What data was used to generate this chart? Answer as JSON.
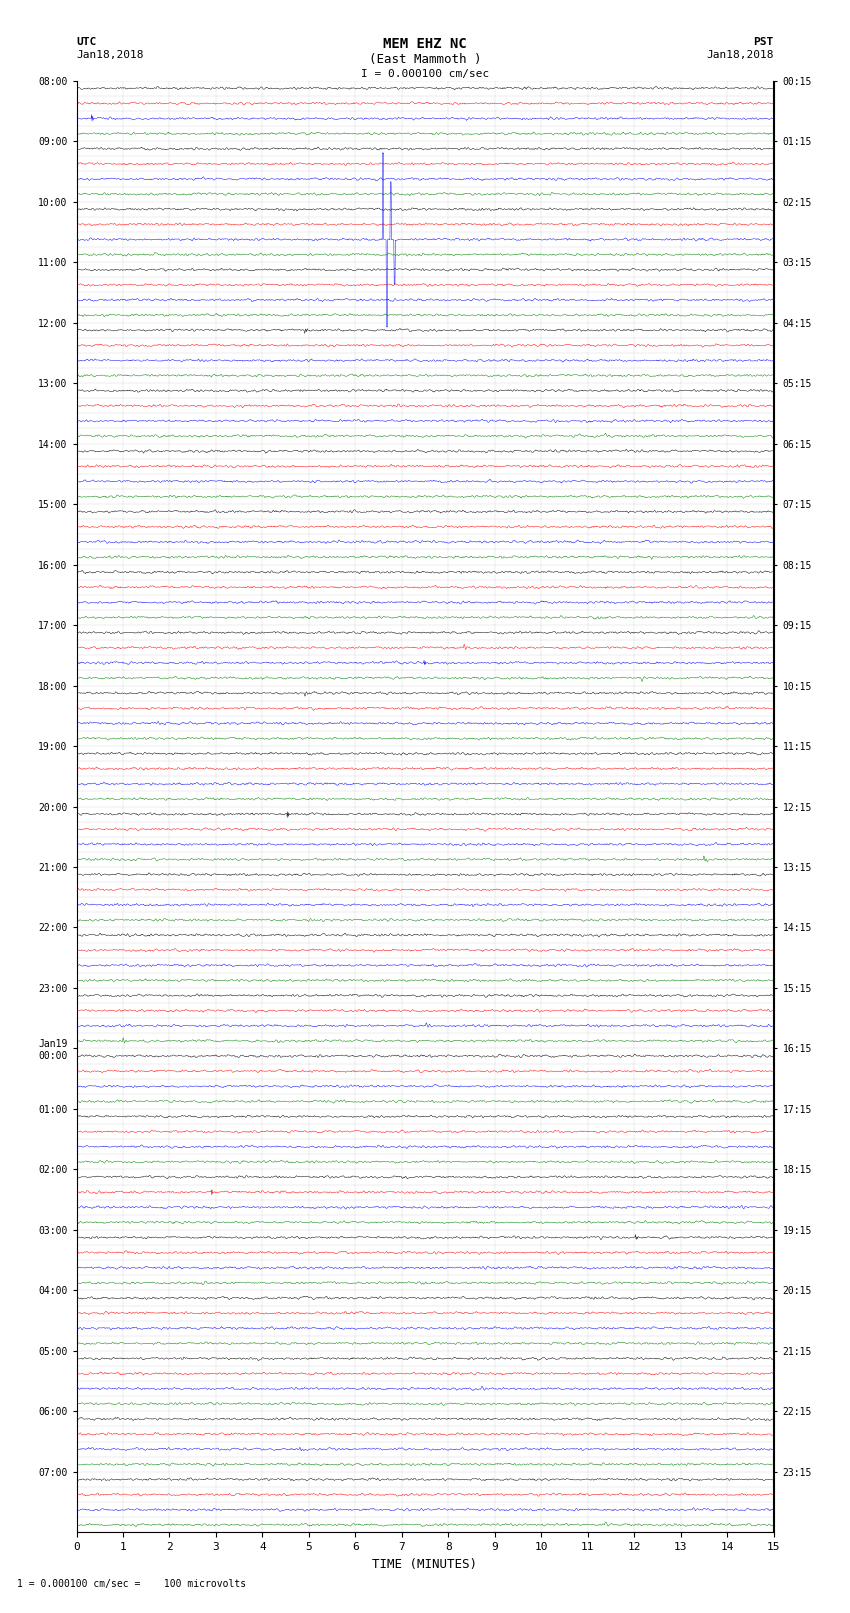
{
  "title_line1": "MEM EHZ NC",
  "title_line2": "(East Mammoth )",
  "scale_label": "I = 0.000100 cm/sec",
  "left_header": "UTC",
  "left_date": "Jan18,2018",
  "right_header": "PST",
  "right_date": "Jan18,2018",
  "bottom_label": "TIME (MINUTES)",
  "footer_label": "1 = 0.000100 cm/sec =    100 microvolts",
  "xlabel_ticks": [
    0,
    1,
    2,
    3,
    4,
    5,
    6,
    7,
    8,
    9,
    10,
    11,
    12,
    13,
    14,
    15
  ],
  "utc_times": [
    "08:00",
    "",
    "",
    "",
    "09:00",
    "",
    "",
    "",
    "10:00",
    "",
    "",
    "",
    "11:00",
    "",
    "",
    "",
    "12:00",
    "",
    "",
    "",
    "13:00",
    "",
    "",
    "",
    "14:00",
    "",
    "",
    "",
    "15:00",
    "",
    "",
    "",
    "16:00",
    "",
    "",
    "",
    "17:00",
    "",
    "",
    "",
    "18:00",
    "",
    "",
    "",
    "19:00",
    "",
    "",
    "",
    "20:00",
    "",
    "",
    "",
    "21:00",
    "",
    "",
    "",
    "22:00",
    "",
    "",
    "",
    "23:00",
    "",
    "",
    "",
    "Jan19\n00:00",
    "",
    "",
    "",
    "01:00",
    "",
    "",
    "",
    "02:00",
    "",
    "",
    "",
    "03:00",
    "",
    "",
    "",
    "04:00",
    "",
    "",
    "",
    "05:00",
    "",
    "",
    "",
    "06:00",
    "",
    "",
    "",
    "07:00",
    "",
    "",
    ""
  ],
  "pst_times": [
    "00:15",
    "",
    "",
    "",
    "01:15",
    "",
    "",
    "",
    "02:15",
    "",
    "",
    "",
    "03:15",
    "",
    "",
    "",
    "04:15",
    "",
    "",
    "",
    "05:15",
    "",
    "",
    "",
    "06:15",
    "",
    "",
    "",
    "07:15",
    "",
    "",
    "",
    "08:15",
    "",
    "",
    "",
    "09:15",
    "",
    "",
    "",
    "10:15",
    "",
    "",
    "",
    "11:15",
    "",
    "",
    "",
    "12:15",
    "",
    "",
    "",
    "13:15",
    "",
    "",
    "",
    "14:15",
    "",
    "",
    "",
    "15:15",
    "",
    "",
    "",
    "16:15",
    "",
    "",
    "",
    "17:15",
    "",
    "",
    "",
    "18:15",
    "",
    "",
    "",
    "19:15",
    "",
    "",
    "",
    "20:15",
    "",
    "",
    "",
    "21:15",
    "",
    "",
    "",
    "22:15",
    "",
    "",
    "",
    "23:15",
    "",
    "",
    ""
  ],
  "trace_colors": [
    "black",
    "red",
    "blue",
    "green"
  ],
  "n_rows": 96,
  "n_points": 1800,
  "fig_width": 8.5,
  "fig_height": 16.13,
  "bg_color": "white",
  "grid_color": "#888888",
  "trace_amplitude": 0.08,
  "noise_seeds": [
    42
  ]
}
